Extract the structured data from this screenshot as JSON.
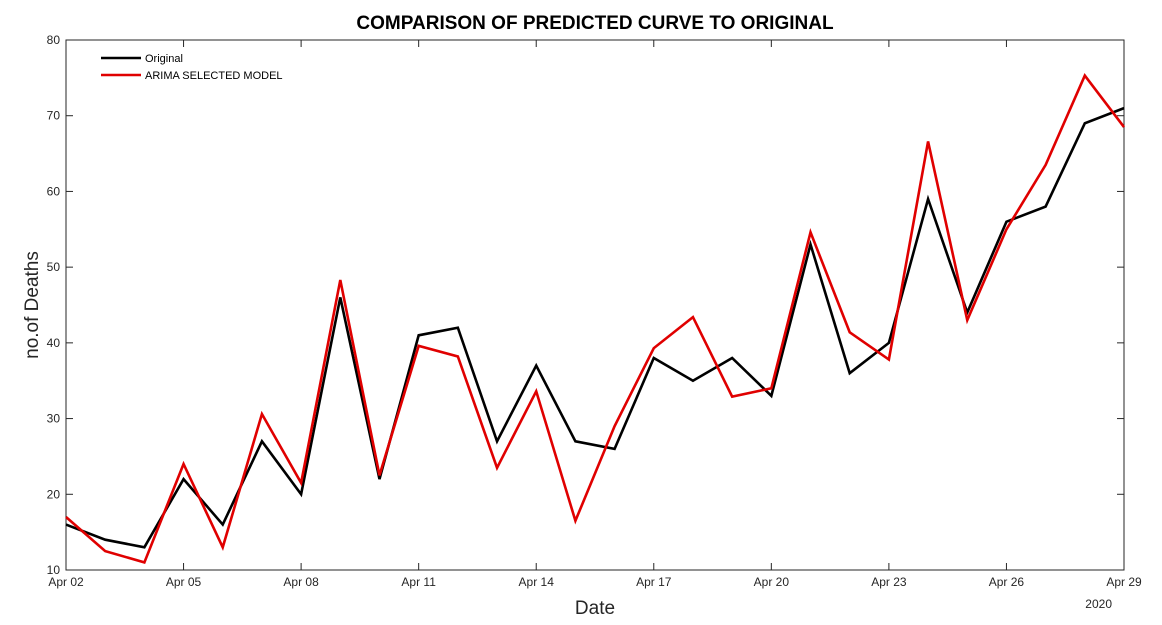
{
  "chart_data": {
    "type": "line",
    "title": "COMPARISON OF PREDICTED CURVE TO ORIGINAL",
    "xlabel": "Date",
    "ylabel": "no.of Deaths",
    "year_label": "2020",
    "ylim": [
      10,
      80
    ],
    "y_ticks": [
      10,
      20,
      30,
      40,
      50,
      60,
      70,
      80
    ],
    "x_range": [
      "2020-04-02",
      "2020-04-29"
    ],
    "x_ticks": [
      {
        "date": "2020-04-02",
        "label": "Apr 02"
      },
      {
        "date": "2020-04-05",
        "label": "Apr 05"
      },
      {
        "date": "2020-04-08",
        "label": "Apr 08"
      },
      {
        "date": "2020-04-11",
        "label": "Apr 11"
      },
      {
        "date": "2020-04-14",
        "label": "Apr 14"
      },
      {
        "date": "2020-04-17",
        "label": "Apr 17"
      },
      {
        "date": "2020-04-20",
        "label": "Apr 20"
      },
      {
        "date": "2020-04-23",
        "label": "Apr 23"
      },
      {
        "date": "2020-04-26",
        "label": "Apr 26"
      },
      {
        "date": "2020-04-29",
        "label": "Apr 29"
      }
    ],
    "x": [
      "2020-04-02",
      "2020-04-03",
      "2020-04-04",
      "2020-04-05",
      "2020-04-06",
      "2020-04-07",
      "2020-04-08",
      "2020-04-09",
      "2020-04-10",
      "2020-04-11",
      "2020-04-12",
      "2020-04-13",
      "2020-04-14",
      "2020-04-15",
      "2020-04-16",
      "2020-04-17",
      "2020-04-18",
      "2020-04-19",
      "2020-04-20",
      "2020-04-21",
      "2020-04-22",
      "2020-04-23",
      "2020-04-24",
      "2020-04-25",
      "2020-04-26",
      "2020-04-27",
      "2020-04-28",
      "2020-04-29"
    ],
    "series": [
      {
        "name": "Original",
        "color": "#000000",
        "values": [
          16,
          14,
          13,
          22,
          16,
          27,
          20,
          46,
          22,
          41,
          42,
          27,
          37,
          27,
          26,
          38,
          35,
          38,
          33,
          53,
          36,
          40,
          59,
          44,
          56,
          58,
          69,
          71
        ]
      },
      {
        "name": "ARIMA SELECTED MODEL",
        "color": "#e00000",
        "values": [
          17,
          12.5,
          11,
          24,
          13,
          30.6,
          21.5,
          48.3,
          22.5,
          39.6,
          38.2,
          23.5,
          33.6,
          16.5,
          29,
          39.3,
          43.4,
          32.9,
          34,
          54.6,
          41.4,
          37.8,
          66.6,
          43,
          55,
          63.5,
          75.3,
          68.5
        ]
      }
    ],
    "legend": {
      "position": "top-left"
    },
    "grid": false
  }
}
